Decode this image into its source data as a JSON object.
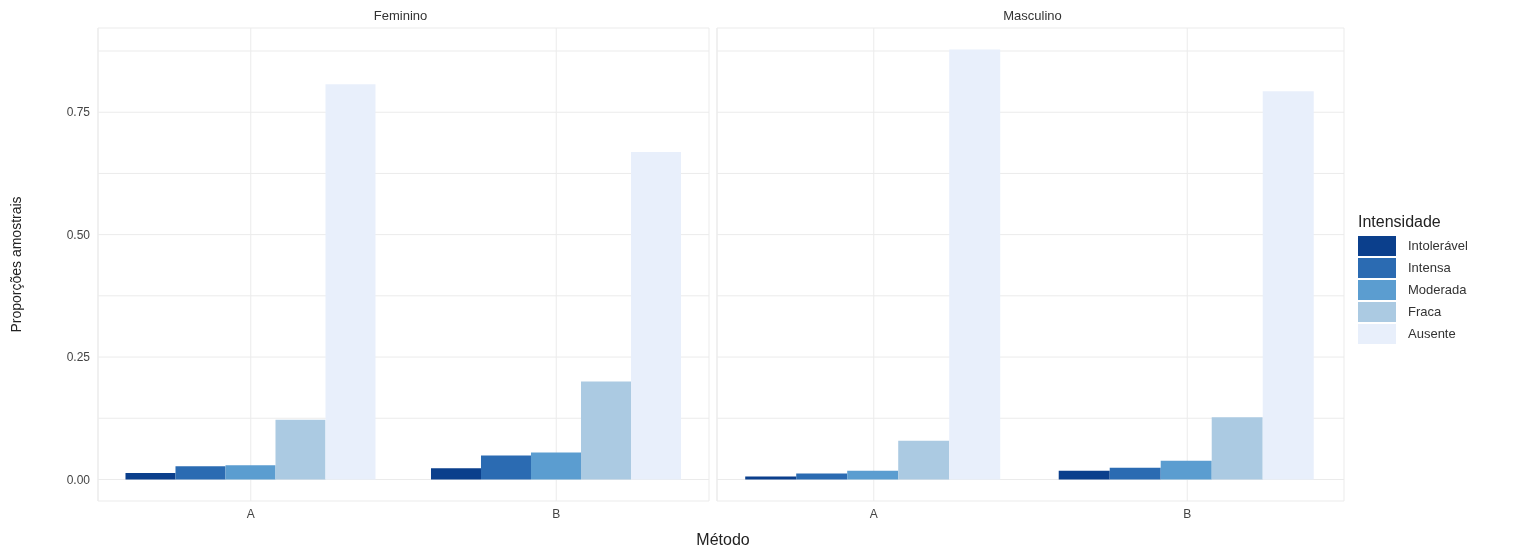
{
  "chart_data": [
    {
      "type": "bar",
      "title": "Feminino",
      "xlabel": "Método",
      "ylabel": "Proporções amostrais",
      "categories": [
        "A",
        "B"
      ],
      "series": [
        {
          "color": "#0b3f8c",
          "values": [
            0.013,
            0.023
          ]
        },
        {
          "color": "#2b6bb2",
          "values": [
            0.027,
            0.049
          ]
        },
        {
          "color": "#5b9dd0",
          "values": [
            0.029,
            0.055
          ]
        },
        {
          "color": "#abcae2",
          "values": [
            0.122,
            0.2
          ]
        },
        {
          "color": "#e8effb",
          "values": [
            0.807,
            0.669
          ]
        }
      ],
      "ylim": [
        -0.044,
        0.922
      ],
      "yticks": [
        {
          "value": 0,
          "label": "0.00"
        },
        {
          "value": 0.125,
          "label": null
        },
        {
          "value": 0.25,
          "label": "0.25"
        },
        {
          "value": 0.375,
          "label": null
        },
        {
          "value": 0.5,
          "label": "0.50"
        },
        {
          "value": 0.625,
          "label": null
        },
        {
          "value": 0.75,
          "label": "0.75"
        },
        {
          "value": 0.875,
          "label": null
        }
      ],
      "grid": true,
      "legend": false
    },
    {
      "type": "bar",
      "title": "Masculino",
      "categories": [
        "A",
        "B"
      ],
      "legend_title": "Intensidade",
      "series": [
        {
          "name": "Intolerável",
          "color": "#0b3f8c",
          "values": [
            0.006,
            0.018
          ]
        },
        {
          "name": "Intensa",
          "color": "#2b6bb2",
          "values": [
            0.012,
            0.024
          ]
        },
        {
          "name": "Moderada",
          "color": "#5b9dd0",
          "values": [
            0.018,
            0.038
          ]
        },
        {
          "name": "Fraca",
          "color": "#abcae2",
          "values": [
            0.079,
            0.127
          ]
        },
        {
          "name": "Ausente",
          "color": "#e8effb",
          "values": [
            0.878,
            0.793
          ]
        }
      ],
      "ylim": [
        -0.044,
        0.922
      ],
      "yticks": [
        {
          "value": 0,
          "label": null
        },
        {
          "value": 0.125,
          "label": null
        },
        {
          "value": 0.25,
          "label": null
        },
        {
          "value": 0.375,
          "label": null
        },
        {
          "value": 0.5,
          "label": null
        },
        {
          "value": 0.625,
          "label": null
        },
        {
          "value": 0.75,
          "label": null
        },
        {
          "value": 0.875,
          "label": null
        }
      ],
      "tick_labels": "x",
      "grid": true,
      "legend": "right"
    }
  ]
}
